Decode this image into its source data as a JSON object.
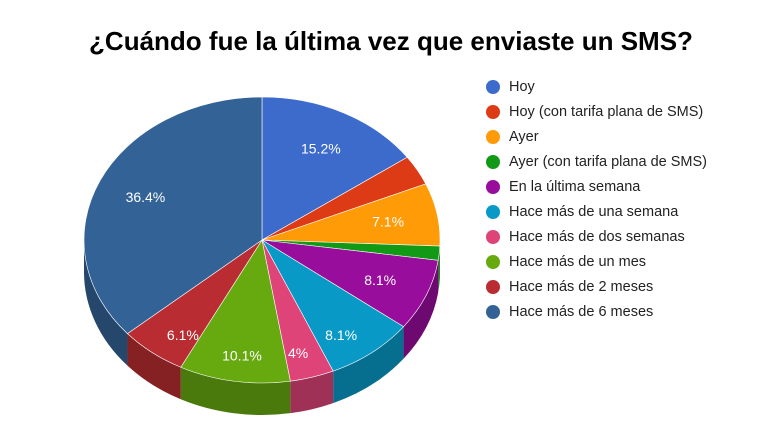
{
  "chart_data": {
    "type": "pie",
    "title": "¿Cuándo fue la última vez que enviaste un SMS?",
    "legend_position": "right",
    "three_d": true,
    "slices": [
      {
        "name": "Hoy",
        "value": 15.2,
        "label": "15.2%",
        "color": "#3c6bcc"
      },
      {
        "name": "Hoy (con tarifa plana de SMS)",
        "value": 3.4,
        "label": "",
        "color": "#dc3b16"
      },
      {
        "name": "Ayer",
        "value": 7.1,
        "label": "7.1%",
        "color": "#ff9b06"
      },
      {
        "name": "Ayer (con tarifa plana de SMS)",
        "value": 1.6,
        "label": "",
        "color": "#129a17"
      },
      {
        "name": "En la última semana",
        "value": 8.1,
        "label": "8.1%",
        "color": "#980d9b"
      },
      {
        "name": "Hace más de una semana",
        "value": 8.1,
        "label": "8.1%",
        "color": "#0899c7"
      },
      {
        "name": "Hace más de dos semanas",
        "value": 4,
        "label": "4%",
        "color": "#de4478"
      },
      {
        "name": "Hace más de un mes",
        "value": 10.1,
        "label": "10.1%",
        "color": "#67aa10"
      },
      {
        "name": "Hace más de 2 meses",
        "value": 6.1,
        "label": "6.1%",
        "color": "#b92c31"
      },
      {
        "name": "Hace más de 6 meses",
        "value": 36.4,
        "label": "36.4%",
        "color": "#336396"
      }
    ]
  }
}
